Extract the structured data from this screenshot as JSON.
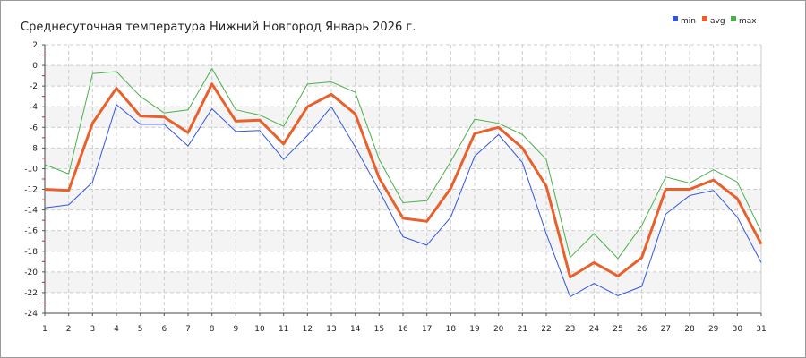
{
  "chart_data": {
    "type": "line",
    "title": "Среднесуточная температура Нижний Новгород  Январь 2026 г.",
    "xlabel": "",
    "ylabel": "",
    "x": [
      1,
      2,
      3,
      4,
      5,
      6,
      7,
      8,
      9,
      10,
      11,
      12,
      13,
      14,
      15,
      16,
      17,
      18,
      19,
      20,
      21,
      22,
      23,
      24,
      25,
      26,
      27,
      28,
      29,
      30,
      31
    ],
    "xlim": [
      1,
      31
    ],
    "ylim": [
      -24,
      2
    ],
    "yticks": [
      2,
      0,
      -2,
      -4,
      -6,
      -8,
      -10,
      -12,
      -14,
      -16,
      -18,
      -20,
      -22,
      -24
    ],
    "grid": true,
    "legend_position": "top-right",
    "series": [
      {
        "name": "min",
        "color": "#3355dd",
        "values": [
          -13.8,
          -13.5,
          -11.3,
          -3.8,
          -5.7,
          -5.7,
          -7.8,
          -4.2,
          -6.4,
          -6.3,
          -9.1,
          -6.8,
          -4.0,
          -7.9,
          -12.1,
          -16.6,
          -17.4,
          -14.7,
          -8.8,
          -6.7,
          -9.4,
          -16.3,
          -22.4,
          -21.1,
          -22.3,
          -21.4,
          -14.4,
          -12.6,
          -12.1,
          -14.7,
          -19.1
        ]
      },
      {
        "name": "avg",
        "color": "#e8602c",
        "values": [
          -12.0,
          -12.1,
          -5.6,
          -2.2,
          -4.9,
          -5.0,
          -6.5,
          -1.8,
          -5.4,
          -5.3,
          -7.6,
          -4.0,
          -2.8,
          -4.7,
          -10.9,
          -14.8,
          -15.1,
          -11.9,
          -6.6,
          -6.0,
          -8.0,
          -11.7,
          -20.5,
          -19.1,
          -20.4,
          -18.6,
          -12.0,
          -12.0,
          -11.1,
          -12.9,
          -17.3
        ]
      },
      {
        "name": "max",
        "color": "#4ab04a",
        "values": [
          -9.6,
          -10.5,
          -0.8,
          -0.6,
          -3.0,
          -4.6,
          -4.3,
          -0.3,
          -4.3,
          -4.8,
          -5.9,
          -1.8,
          -1.6,
          -2.6,
          -9.1,
          -13.3,
          -13.1,
          -9.3,
          -5.2,
          -5.6,
          -6.7,
          -9.1,
          -18.6,
          -16.3,
          -18.7,
          -15.5,
          -10.8,
          -11.4,
          -10.1,
          -11.3,
          -16.1
        ]
      }
    ]
  }
}
